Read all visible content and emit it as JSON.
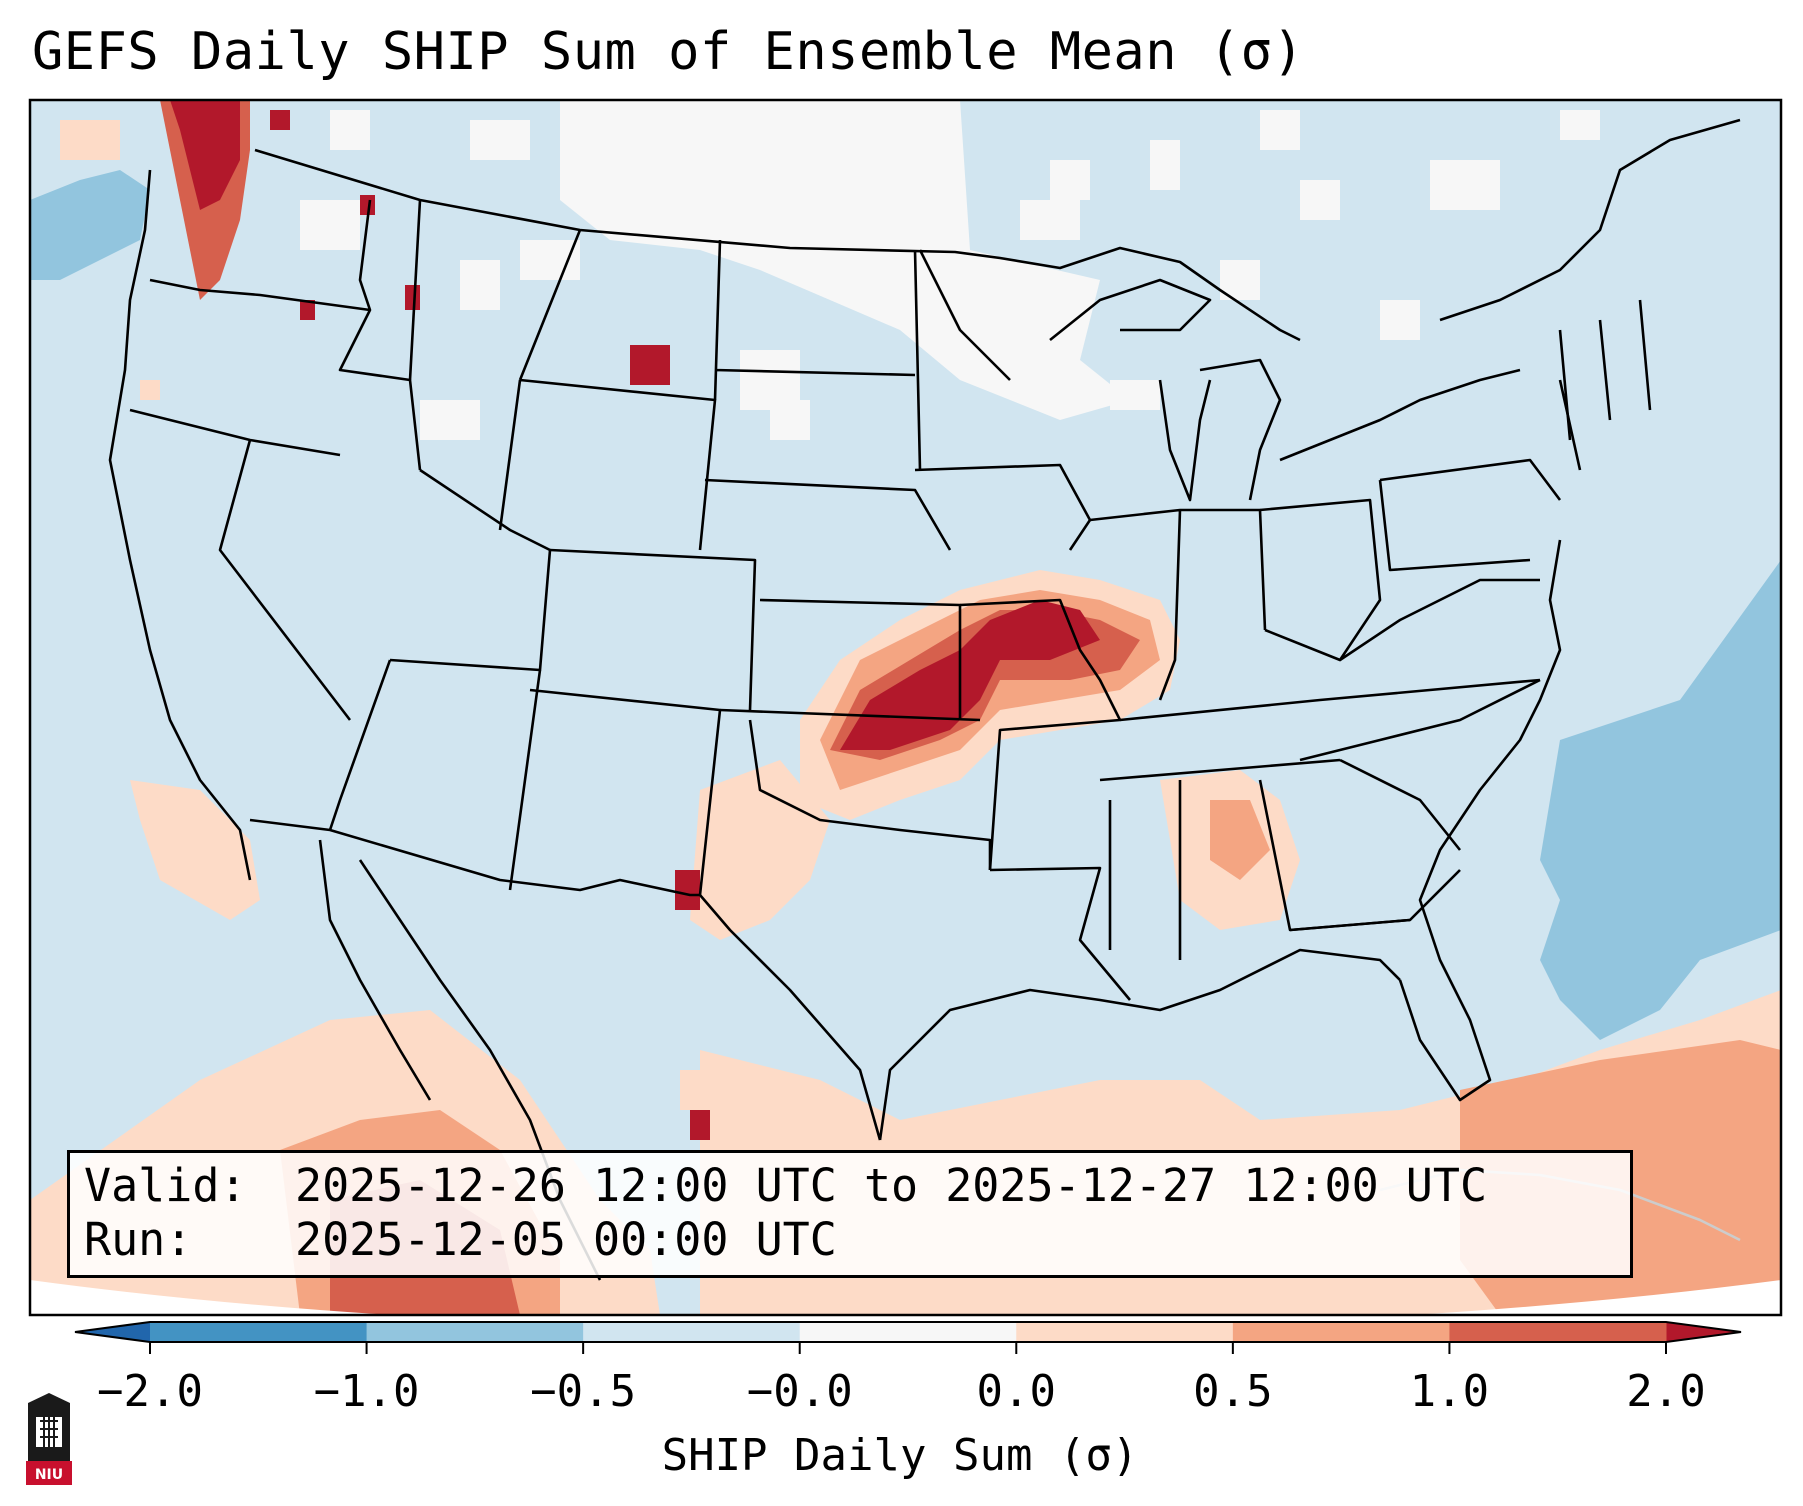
{
  "title": "GEFS Daily SHIP Sum of Ensemble Mean (σ)",
  "info": {
    "valid_label": "Valid:",
    "valid_value": "2025-12-26 12:00 UTC to 2025-12-27 12:00 UTC",
    "run_label": "Run:",
    "run_value": "2025-12-05 00:00 UTC"
  },
  "colorbar": {
    "label": "SHIP Daily Sum (σ)",
    "ticks": [
      "−2.0",
      "−1.0",
      "−0.5",
      "−0.0",
      "0.0",
      "0.5",
      "1.0",
      "2.0"
    ],
    "colors": [
      "#4393c3",
      "#92c5de",
      "#d1e5f0",
      "#f7f7f7",
      "#fddbc7",
      "#f4a582",
      "#d6604d"
    ],
    "extend_low_color": "#2166ac",
    "extend_high_color": "#b2182b"
  },
  "map": {
    "region": "CONUS",
    "background_color": "#d1e5f0",
    "high_anomaly_color": "#b2182b",
    "logo_text": "NIU"
  }
}
